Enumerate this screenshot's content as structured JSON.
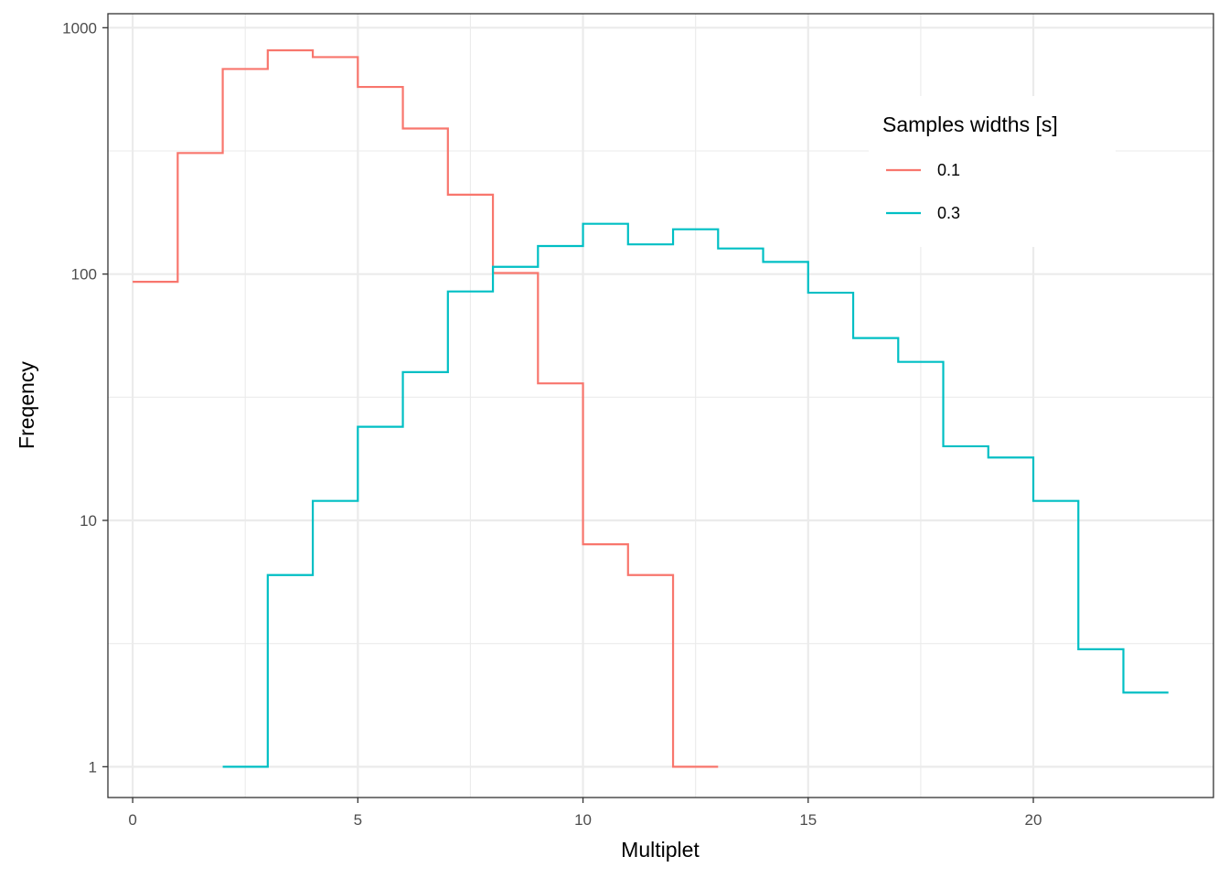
{
  "chart_data": {
    "type": "line",
    "style": "step-histogram",
    "xlabel": "Multiplet",
    "ylabel": "Freqency",
    "x_ticks": [
      0,
      5,
      10,
      15,
      20
    ],
    "x_tick_labels": [
      "0",
      "5",
      "10",
      "15",
      "20"
    ],
    "y_scale": "log10",
    "y_ticks": [
      1,
      10,
      100,
      1000
    ],
    "y_tick_labels": [
      "1",
      "10",
      "100",
      "1000"
    ],
    "xlim": [
      -0.55,
      24.0
    ],
    "ylim": [
      0.75,
      1140
    ],
    "grid": true,
    "legend": {
      "title": "Samples widths [s]",
      "position": "top-right"
    },
    "series": [
      {
        "name": "0.1",
        "color": "#F8766D",
        "bin_start": 0,
        "values": [
          93,
          310,
          680,
          810,
          760,
          575,
          390,
          210,
          101,
          36,
          8,
          6,
          1
        ]
      },
      {
        "name": "0.3",
        "color": "#00BFC4",
        "bin_start": 2,
        "values": [
          1,
          6,
          12,
          24,
          40,
          85,
          107,
          130,
          160,
          132,
          152,
          127,
          112,
          84,
          55,
          44,
          20,
          18,
          12,
          3,
          2
        ]
      }
    ]
  }
}
